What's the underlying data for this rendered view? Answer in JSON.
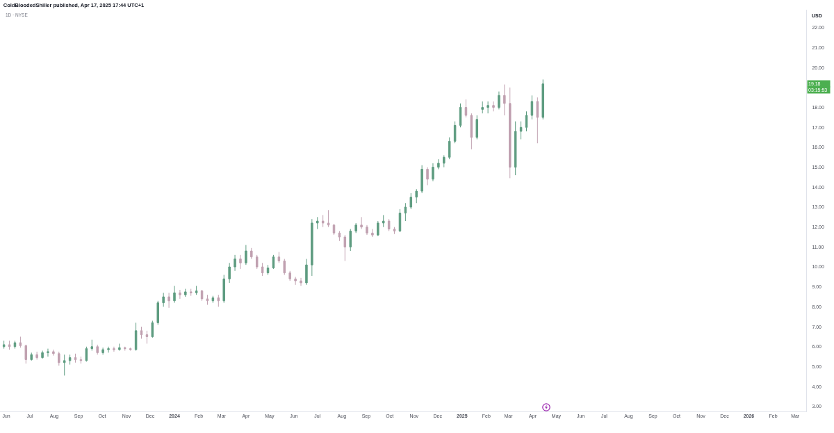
{
  "chart_data": {
    "type": "candlestick",
    "title": "ColdBloodedShiller published, Apr 17, 2025 17:44 UTC+1",
    "subtitle": "1D · NYSE",
    "ylabel": "USD",
    "annotations": [
      "19.18",
      "03:15:53"
    ],
    "x": [
      "2023-05-29",
      "2023-06-05",
      "2023-06-12",
      "2023-06-19",
      "2023-06-26",
      "2023-07-03",
      "2023-07-10",
      "2023-07-17",
      "2023-07-24",
      "2023-07-31",
      "2023-08-07",
      "2023-08-14",
      "2023-08-21",
      "2023-08-28",
      "2023-09-04",
      "2023-09-11",
      "2023-09-18",
      "2023-09-25",
      "2023-10-02",
      "2023-10-09",
      "2023-10-16",
      "2023-10-23",
      "2023-10-30",
      "2023-11-06",
      "2023-11-13",
      "2023-11-20",
      "2023-11-27",
      "2023-12-04",
      "2023-12-11",
      "2023-12-18",
      "2023-12-25",
      "2024-01-01",
      "2024-01-08",
      "2024-01-15",
      "2024-01-22",
      "2024-01-29",
      "2024-02-05",
      "2024-02-12",
      "2024-02-19",
      "2024-02-26",
      "2024-03-04",
      "2024-03-11",
      "2024-03-18",
      "2024-03-25",
      "2024-04-01",
      "2024-04-08",
      "2024-04-15",
      "2024-04-22",
      "2024-04-29",
      "2024-05-06",
      "2024-05-13",
      "2024-05-20",
      "2024-05-27",
      "2024-06-03",
      "2024-06-10",
      "2024-06-17",
      "2024-06-24",
      "2024-07-01",
      "2024-07-08",
      "2024-07-15",
      "2024-07-22",
      "2024-07-29",
      "2024-08-05",
      "2024-08-12",
      "2024-08-19",
      "2024-08-26",
      "2024-09-02",
      "2024-09-09",
      "2024-09-16",
      "2024-09-23",
      "2024-09-30",
      "2024-10-07",
      "2024-10-14",
      "2024-10-21",
      "2024-10-28",
      "2024-11-04",
      "2024-11-11",
      "2024-11-18",
      "2024-11-25",
      "2024-12-02",
      "2024-12-09",
      "2024-12-16",
      "2024-12-23",
      "2024-12-30",
      "2025-01-06",
      "2025-01-13",
      "2025-01-20",
      "2025-01-27",
      "2025-02-03",
      "2025-02-10",
      "2025-02-17",
      "2025-02-24",
      "2025-03-03",
      "2025-03-10",
      "2025-03-17",
      "2025-03-24",
      "2025-03-31",
      "2025-04-07",
      "2025-04-14"
    ],
    "ohlc": [
      [
        6.0,
        6.3,
        5.9,
        6.1
      ],
      [
        6.1,
        6.3,
        5.85,
        6.0
      ],
      [
        6.0,
        6.3,
        5.9,
        6.2
      ],
      [
        6.2,
        6.5,
        5.95,
        6.05
      ],
      [
        6.05,
        6.1,
        5.15,
        5.35
      ],
      [
        5.35,
        5.7,
        5.3,
        5.6
      ],
      [
        5.6,
        5.75,
        5.35,
        5.45
      ],
      [
        5.45,
        5.8,
        5.4,
        5.7
      ],
      [
        5.7,
        5.9,
        5.5,
        5.75
      ],
      [
        5.75,
        5.85,
        5.55,
        5.65
      ],
      [
        5.65,
        5.75,
        5.05,
        5.2
      ],
      [
        5.2,
        5.6,
        4.55,
        5.3
      ],
      [
        5.3,
        5.6,
        5.1,
        5.45
      ],
      [
        5.45,
        5.65,
        5.2,
        5.35
      ],
      [
        5.35,
        5.5,
        5.15,
        5.3
      ],
      [
        5.3,
        6.0,
        5.25,
        5.9
      ],
      [
        5.9,
        6.35,
        5.8,
        6.0
      ],
      [
        6.0,
        6.1,
        5.6,
        5.7
      ],
      [
        5.7,
        5.95,
        5.6,
        5.85
      ],
      [
        5.85,
        6.0,
        5.7,
        5.9
      ],
      [
        5.9,
        6.0,
        5.75,
        5.85
      ],
      [
        5.85,
        6.15,
        5.8,
        5.95
      ],
      [
        5.95,
        6.0,
        5.8,
        5.9
      ],
      [
        5.9,
        5.95,
        5.8,
        5.85
      ],
      [
        5.85,
        7.2,
        5.8,
        6.8
      ],
      [
        6.8,
        7.0,
        6.4,
        6.6
      ],
      [
        6.6,
        6.8,
        6.15,
        6.5
      ],
      [
        6.5,
        7.3,
        6.45,
        7.2
      ],
      [
        7.2,
        8.3,
        7.1,
        8.2
      ],
      [
        8.2,
        8.7,
        8.0,
        8.5
      ],
      [
        8.5,
        8.7,
        7.95,
        8.3
      ],
      [
        8.3,
        9.05,
        8.2,
        8.7
      ],
      [
        8.7,
        8.85,
        8.4,
        8.6
      ],
      [
        8.6,
        8.9,
        8.5,
        8.75
      ],
      [
        8.75,
        8.9,
        8.55,
        8.7
      ],
      [
        8.7,
        9.05,
        8.6,
        8.8
      ],
      [
        8.8,
        8.85,
        8.3,
        8.4
      ],
      [
        8.4,
        8.6,
        8.1,
        8.3
      ],
      [
        8.3,
        8.55,
        8.2,
        8.45
      ],
      [
        8.45,
        8.6,
        8.0,
        8.3
      ],
      [
        8.3,
        9.6,
        8.2,
        9.4
      ],
      [
        9.4,
        10.2,
        9.2,
        10.0
      ],
      [
        10.0,
        10.6,
        9.8,
        10.4
      ],
      [
        10.4,
        10.6,
        9.9,
        10.2
      ],
      [
        10.2,
        11.1,
        10.1,
        10.8
      ],
      [
        10.8,
        10.95,
        10.4,
        10.5
      ],
      [
        10.5,
        10.6,
        9.9,
        10.0
      ],
      [
        10.0,
        10.2,
        9.55,
        9.7
      ],
      [
        9.7,
        10.1,
        9.6,
        9.95
      ],
      [
        9.95,
        10.6,
        9.9,
        10.5
      ],
      [
        10.5,
        10.75,
        10.2,
        10.3
      ],
      [
        10.3,
        10.4,
        9.6,
        9.7
      ],
      [
        9.7,
        9.8,
        9.3,
        9.4
      ],
      [
        9.4,
        9.5,
        9.1,
        9.3
      ],
      [
        9.3,
        9.45,
        9.05,
        9.2
      ],
      [
        9.2,
        10.4,
        9.1,
        10.1
      ],
      [
        10.1,
        12.4,
        9.55,
        12.2
      ],
      [
        12.2,
        12.5,
        11.9,
        12.3
      ],
      [
        12.3,
        12.6,
        12.0,
        12.2
      ],
      [
        12.2,
        12.85,
        12.0,
        12.1
      ],
      [
        12.1,
        12.15,
        11.6,
        11.7
      ],
      [
        11.7,
        11.8,
        11.3,
        11.5
      ],
      [
        11.5,
        11.6,
        10.3,
        11.0
      ],
      [
        11.0,
        11.9,
        10.8,
        11.8
      ],
      [
        11.8,
        12.2,
        11.7,
        12.1
      ],
      [
        12.1,
        12.5,
        11.9,
        12.0
      ],
      [
        12.0,
        12.1,
        11.6,
        11.7
      ],
      [
        11.7,
        11.9,
        11.5,
        11.6
      ],
      [
        11.6,
        12.3,
        11.55,
        12.2
      ],
      [
        12.2,
        12.6,
        12.0,
        12.3
      ],
      [
        12.3,
        12.4,
        11.8,
        11.9
      ],
      [
        11.9,
        12.0,
        11.65,
        11.8
      ],
      [
        11.8,
        12.9,
        11.75,
        12.7
      ],
      [
        12.7,
        13.2,
        12.3,
        13.0
      ],
      [
        13.0,
        13.7,
        12.9,
        13.5
      ],
      [
        13.5,
        13.9,
        13.2,
        13.8
      ],
      [
        13.8,
        15.1,
        13.7,
        14.9
      ],
      [
        14.9,
        15.0,
        14.1,
        14.4
      ],
      [
        14.4,
        15.2,
        14.3,
        15.0
      ],
      [
        15.0,
        15.4,
        14.9,
        15.2
      ],
      [
        15.2,
        15.6,
        15.0,
        15.5
      ],
      [
        15.5,
        16.5,
        15.4,
        16.3
      ],
      [
        16.3,
        17.3,
        16.2,
        17.1
      ],
      [
        17.1,
        18.2,
        17.0,
        18.0
      ],
      [
        18.0,
        18.4,
        17.5,
        17.6
      ],
      [
        17.6,
        17.7,
        15.9,
        16.5
      ],
      [
        16.5,
        17.6,
        16.4,
        17.4
      ],
      [
        17.9,
        18.3,
        17.7,
        18.0
      ],
      [
        18.0,
        18.3,
        17.7,
        18.1
      ],
      [
        18.1,
        18.3,
        17.8,
        18.0
      ],
      [
        18.0,
        18.8,
        17.9,
        18.6
      ],
      [
        18.6,
        19.15,
        17.6,
        18.2
      ],
      [
        18.2,
        19.0,
        14.45,
        15.0
      ],
      [
        15.0,
        17.3,
        14.6,
        16.8
      ],
      [
        16.8,
        17.3,
        16.4,
        17.0
      ],
      [
        17.0,
        17.8,
        16.8,
        17.6
      ],
      [
        17.6,
        18.6,
        17.4,
        18.3
      ],
      [
        18.3,
        18.5,
        16.2,
        17.5
      ],
      [
        17.5,
        19.4,
        17.4,
        19.18
      ]
    ],
    "colors": [
      "#5e9c80",
      "#c0a0b0",
      "#5e9c80",
      "#c0a0b0",
      "#c0a0b0",
      "#5e9c80",
      "#c0a0b0",
      "#5e9c80",
      "#5e9c80",
      "#c0a0b0",
      "#c0a0b0",
      "#5e9c80",
      "#5e9c80",
      "#c0a0b0",
      "#c0a0b0",
      "#5e9c80",
      "#5e9c80",
      "#c0a0b0",
      "#5e9c80",
      "#5e9c80",
      "#c0a0b0",
      "#5e9c80",
      "#c0a0b0",
      "#c0a0b0",
      "#5e9c80",
      "#c0a0b0",
      "#c0a0b0",
      "#5e9c80",
      "#5e9c80",
      "#5e9c80",
      "#c0a0b0",
      "#5e9c80",
      "#c0a0b0",
      "#5e9c80",
      "#c0a0b0",
      "#5e9c80",
      "#c0a0b0",
      "#c0a0b0",
      "#5e9c80",
      "#c0a0b0",
      "#5e9c80",
      "#5e9c80",
      "#5e9c80",
      "#c0a0b0",
      "#5e9c80",
      "#c0a0b0",
      "#c0a0b0",
      "#c0a0b0",
      "#5e9c80",
      "#5e9c80",
      "#c0a0b0",
      "#c0a0b0",
      "#c0a0b0",
      "#c0a0b0",
      "#c0a0b0",
      "#5e9c80",
      "#5e9c80",
      "#5e9c80",
      "#c0a0b0",
      "#c0a0b0",
      "#c0a0b0",
      "#c0a0b0",
      "#c0a0b0",
      "#5e9c80",
      "#5e9c80",
      "#c0a0b0",
      "#c0a0b0",
      "#c0a0b0",
      "#5e9c80",
      "#5e9c80",
      "#c0a0b0",
      "#c0a0b0",
      "#5e9c80",
      "#5e9c80",
      "#5e9c80",
      "#5e9c80",
      "#5e9c80",
      "#c0a0b0",
      "#5e9c80",
      "#5e9c80",
      "#5e9c80",
      "#5e9c80",
      "#5e9c80",
      "#5e9c80",
      "#c0a0b0",
      "#c0a0b0",
      "#5e9c80",
      "#5e9c80",
      "#5e9c80",
      "#c0a0b0",
      "#5e9c80",
      "#c0a0b0",
      "#c0a0b0",
      "#5e9c80",
      "#5e9c80",
      "#5e9c80",
      "#5e9c80",
      "#c0a0b0",
      "#5e9c80"
    ],
    "xlim": [
      "2023-05-24",
      "2026-03-15"
    ],
    "xticks": [
      {
        "value": "2023-06-01",
        "label": "Jun"
      },
      {
        "value": "2023-07-01",
        "label": "Jul"
      },
      {
        "value": "2023-08-01",
        "label": "Aug"
      },
      {
        "value": "2023-09-01",
        "label": "Sep"
      },
      {
        "value": "2023-10-01",
        "label": "Oct"
      },
      {
        "value": "2023-11-01",
        "label": "Nov"
      },
      {
        "value": "2023-12-01",
        "label": "Dec"
      },
      {
        "value": "2024-01-01",
        "label": "2024"
      },
      {
        "value": "2024-02-01",
        "label": "Feb"
      },
      {
        "value": "2024-03-01",
        "label": "Mar"
      },
      {
        "value": "2024-04-01",
        "label": "Apr"
      },
      {
        "value": "2024-05-01",
        "label": "May"
      },
      {
        "value": "2024-06-01",
        "label": "Jun"
      },
      {
        "value": "2024-07-01",
        "label": "Jul"
      },
      {
        "value": "2024-08-01",
        "label": "Aug"
      },
      {
        "value": "2024-09-01",
        "label": "Sep"
      },
      {
        "value": "2024-10-01",
        "label": "Oct"
      },
      {
        "value": "2024-11-01",
        "label": "Nov"
      },
      {
        "value": "2024-12-01",
        "label": "Dec"
      },
      {
        "value": "2025-01-01",
        "label": "2025"
      },
      {
        "value": "2025-02-01",
        "label": "Feb"
      },
      {
        "value": "2025-03-01",
        "label": "Mar"
      },
      {
        "value": "2025-04-01",
        "label": "Apr"
      },
      {
        "value": "2025-05-01",
        "label": "May"
      },
      {
        "value": "2025-06-01",
        "label": "Jun"
      },
      {
        "value": "2025-07-01",
        "label": "Jul"
      },
      {
        "value": "2025-08-01",
        "label": "Aug"
      },
      {
        "value": "2025-09-01",
        "label": "Sep"
      },
      {
        "value": "2025-10-01",
        "label": "Oct"
      },
      {
        "value": "2025-11-01",
        "label": "Nov"
      },
      {
        "value": "2025-12-01",
        "label": "Dec"
      },
      {
        "value": "2026-01-01",
        "label": "2026"
      },
      {
        "value": "2026-02-01",
        "label": "Feb"
      },
      {
        "value": "2026-03-01",
        "label": "Mar"
      }
    ],
    "ylim": [
      2.75,
      22.9
    ],
    "yticks": [
      {
        "value": 3,
        "label": "3.00"
      },
      {
        "value": 4,
        "label": "4.00"
      },
      {
        "value": 5,
        "label": "5.00"
      },
      {
        "value": 6,
        "label": "6.00"
      },
      {
        "value": 7,
        "label": "7.00"
      },
      {
        "value": 8,
        "label": "8.00"
      },
      {
        "value": 9,
        "label": "9.00"
      },
      {
        "value": 10,
        "label": "10.00"
      },
      {
        "value": 11,
        "label": "11.00"
      },
      {
        "value": 12,
        "label": "12.00"
      },
      {
        "value": 13,
        "label": "13.00"
      },
      {
        "value": 14,
        "label": "14.00"
      },
      {
        "value": 15,
        "label": "15.00"
      },
      {
        "value": 16,
        "label": "16.00"
      },
      {
        "value": 17,
        "label": "17.00"
      },
      {
        "value": 18,
        "label": "18.00"
      },
      {
        "value": 20,
        "label": "20.00"
      },
      {
        "value": 21,
        "label": "21.00"
      },
      {
        "value": 22,
        "label": "22.00"
      }
    ]
  }
}
